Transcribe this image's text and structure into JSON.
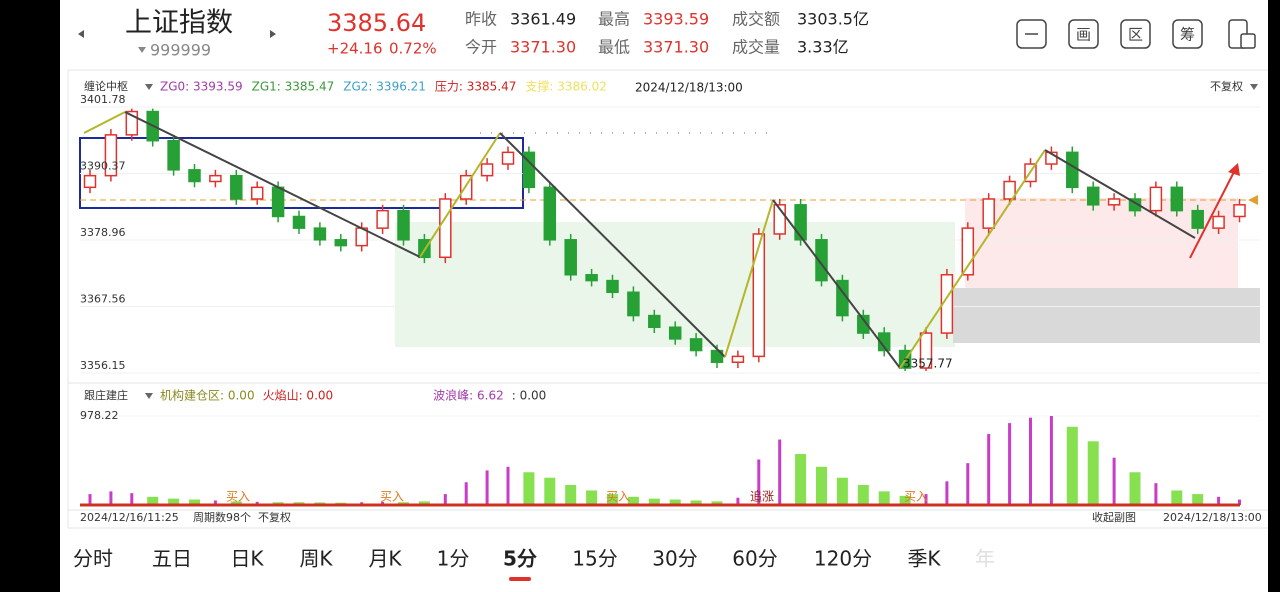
{
  "header": {
    "name": "上证指数",
    "code": "999999",
    "price": "3385.64",
    "change": "+24.16",
    "change_pct": "0.72%",
    "stats": [
      {
        "label": "昨收",
        "value": "3361.49"
      },
      {
        "label": "最高",
        "value": "3393.59"
      },
      {
        "label": "成交额",
        "value": "3303.5亿"
      },
      {
        "label": "今开",
        "value": "3371.30"
      },
      {
        "label": "最低",
        "value": "3371.30"
      },
      {
        "label": "成交量",
        "value": "3.33亿"
      }
    ],
    "tools": [
      "画",
      "区",
      "筹"
    ]
  },
  "chart_data": [
    {
      "type": "candlestick",
      "title": "缠论中枢",
      "indicators": [
        {
          "text": "ZG0: 3393.59",
          "color": "#a03ca8"
        },
        {
          "text": "ZG1: 3385.47",
          "color": "#3a9a3a"
        },
        {
          "text": "ZG2: 3396.21",
          "color": "#3aa0c8"
        },
        {
          "text": "压力: 3385.47",
          "color": "#d02020"
        },
        {
          "text": "支撑: 3386.02",
          "color": "#f0e060"
        }
      ],
      "timestamp": "2024/12/18/13:00",
      "adjust": "不复权",
      "open": [
        3388,
        3390,
        3397,
        3401,
        3396,
        3391,
        3389,
        3390,
        3386,
        3388,
        3383,
        3381,
        3379,
        3378,
        3381,
        3384,
        3379,
        3376,
        3386,
        3390,
        3392,
        3394,
        3388,
        3379,
        3373,
        3372,
        3370,
        3366,
        3364,
        3362,
        3360,
        3358,
        3359,
        3380,
        3385,
        3379,
        3372,
        3366,
        3363,
        3360,
        3357,
        3363,
        3373,
        3381,
        3386,
        3389,
        3392,
        3394,
        3388,
        3385,
        3386,
        3384,
        3388,
        3384,
        3381,
        3383
      ],
      "close": [
        3390,
        3397,
        3401,
        3396,
        3391,
        3389,
        3390,
        3386,
        3388,
        3383,
        3381,
        3379,
        3378,
        3381,
        3384,
        3379,
        3376,
        3386,
        3390,
        3392,
        3394,
        3388,
        3379,
        3373,
        3372,
        3370,
        3366,
        3364,
        3362,
        3360,
        3358,
        3359,
        3380,
        3385,
        3379,
        3372,
        3366,
        3363,
        3360,
        3357,
        3363,
        3373,
        3381,
        3386,
        3389,
        3392,
        3394,
        3388,
        3385,
        3386,
        3384,
        3388,
        3384,
        3381,
        3383,
        3385
      ],
      "high": [
        3391,
        3398,
        3401.5,
        3401.5,
        3397,
        3392,
        3391,
        3391,
        3389,
        3389,
        3384,
        3382,
        3380,
        3382,
        3385,
        3385,
        3380,
        3387,
        3391,
        3393,
        3395,
        3395,
        3389,
        3380,
        3374,
        3373,
        3371,
        3367,
        3365,
        3363,
        3361,
        3360,
        3381,
        3386,
        3386,
        3380,
        3373,
        3367,
        3364,
        3361,
        3364,
        3374,
        3382,
        3387,
        3390,
        3393,
        3395,
        3395,
        3389,
        3387,
        3387,
        3389,
        3389,
        3385,
        3384,
        3386
      ],
      "low": [
        3387,
        3389,
        3396,
        3395,
        3390,
        3388,
        3388,
        3385,
        3385,
        3382,
        3380,
        3378,
        3377,
        3377,
        3380,
        3378,
        3375,
        3375,
        3385,
        3389,
        3391,
        3387,
        3378,
        3372,
        3371,
        3369,
        3365,
        3363,
        3361,
        3359,
        3357,
        3357,
        3358,
        3379,
        3378,
        3371,
        3365,
        3362,
        3359,
        3356.5,
        3356.5,
        3362,
        3372,
        3380,
        3385,
        3388,
        3391,
        3387,
        3384,
        3384,
        3383,
        3383,
        3383,
        3380,
        3380,
        3382
      ],
      "ylim": [
        3356.15,
        3401.78
      ],
      "yticks": [
        3401.78,
        3390.37,
        3378.96,
        3367.56,
        3356.15
      ],
      "annotation": "3357.77",
      "up_color": "#e0322c",
      "down_color": "#27a036"
    },
    {
      "type": "bar",
      "title": "跟庄建庄",
      "indicators": [
        {
          "text": "机构建仓区: 0.00",
          "color": "#8a8a20"
        },
        {
          "text": "火焰山: 0.00",
          "color": "#d02020"
        },
        {
          "text": "波浪峰: 6.62",
          "color": "#a03ca8"
        },
        {
          "text": ": 0.00",
          "color": "#333333"
        }
      ],
      "values": [
        120,
        150,
        130,
        90,
        70,
        60,
        50,
        40,
        35,
        30,
        30,
        28,
        25,
        30,
        35,
        30,
        40,
        120,
        250,
        380,
        420,
        360,
        300,
        220,
        160,
        120,
        90,
        70,
        60,
        50,
        40,
        80,
        500,
        720,
        560,
        420,
        300,
        220,
        150,
        100,
        120,
        260,
        460,
        780,
        900,
        960,
        978,
        860,
        700,
        520,
        360,
        240,
        160,
        120,
        90,
        60
      ],
      "ylim": [
        0,
        978.22
      ],
      "yticks": [
        978.22
      ],
      "signals": [
        "买入",
        "买入",
        "买入",
        "追涨",
        "买入"
      ],
      "up_color": "#c83cc8",
      "down_color": "#86e050"
    }
  ],
  "footer": {
    "start": "2024/12/16/11:25",
    "count": "周期数98个",
    "adjust": "不复权",
    "collapse": "收起副图",
    "end": "2024/12/18/13:00"
  },
  "tabs": [
    "分时",
    "五日",
    "日K",
    "周K",
    "月K",
    "1分",
    "5分",
    "15分",
    "30分",
    "60分",
    "120分",
    "季K",
    "年"
  ],
  "active_tab": 6
}
